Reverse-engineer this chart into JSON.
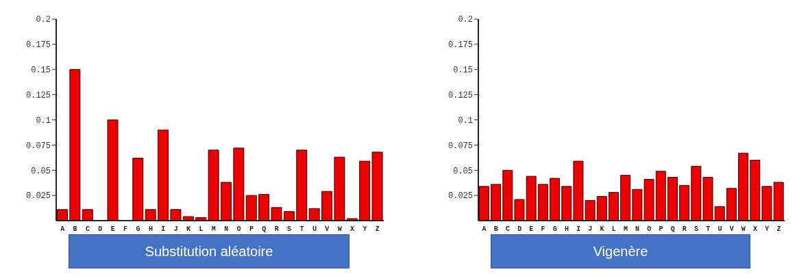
{
  "chart_data": [
    {
      "type": "bar",
      "xlabel": "Substitution aléatoire",
      "categories": [
        "A",
        "B",
        "C",
        "D",
        "E",
        "F",
        "G",
        "H",
        "I",
        "J",
        "K",
        "L",
        "M",
        "N",
        "O",
        "P",
        "Q",
        "R",
        "S",
        "T",
        "U",
        "V",
        "W",
        "X",
        "Y",
        "Z"
      ],
      "values": [
        0.011,
        0.15,
        0.011,
        0,
        0.1,
        0,
        0.062,
        0.011,
        0.09,
        0.011,
        0.004,
        0.003,
        0.07,
        0.038,
        0.072,
        0.025,
        0.026,
        0.013,
        0.009,
        0.07,
        0.012,
        0.029,
        0.063,
        0.002,
        0.059,
        0.068
      ],
      "color": "#ee0000",
      "ylim": [
        0,
        0.2
      ],
      "yticks": [
        0.025,
        0.05,
        0.075,
        0.1,
        0.125,
        0.15,
        0.175,
        0.2
      ],
      "grid": false,
      "legend": false
    },
    {
      "type": "bar",
      "xlabel": "Vigenère",
      "categories": [
        "A",
        "B",
        "C",
        "D",
        "E",
        "F",
        "G",
        "H",
        "I",
        "J",
        "K",
        "L",
        "M",
        "N",
        "O",
        "P",
        "Q",
        "R",
        "S",
        "T",
        "U",
        "V",
        "W",
        "X",
        "Y",
        "Z"
      ],
      "values": [
        0.034,
        0.036,
        0.05,
        0.021,
        0.044,
        0.036,
        0.042,
        0.034,
        0.059,
        0.02,
        0.024,
        0.028,
        0.045,
        0.031,
        0.041,
        0.049,
        0.043,
        0.035,
        0.054,
        0.043,
        0.014,
        0.032,
        0.067,
        0.06,
        0.034,
        0.038
      ],
      "color": "#ee0000",
      "ylim": [
        0,
        0.2
      ],
      "yticks": [
        0.025,
        0.05,
        0.075,
        0.1,
        0.125,
        0.15,
        0.175,
        0.2
      ],
      "grid": false,
      "legend": false
    }
  ]
}
